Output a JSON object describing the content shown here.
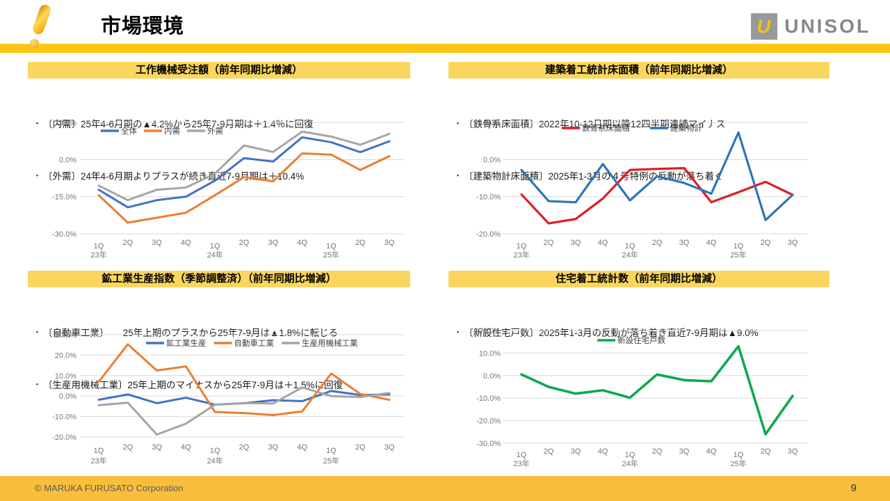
{
  "header": {
    "title": "市場環境"
  },
  "logo": {
    "letter": "U",
    "text": "UNISOL"
  },
  "footer": {
    "copyright": "© MARUKA FURUSATO Corporation",
    "page": "9"
  },
  "colors": {
    "header_strip": "#FFC613",
    "panel_title_bg": "#FBD65F",
    "footer_bar": "#F9BE3B",
    "series_blue": "#4472C4",
    "series_orange": "#ED7D31",
    "series_gray": "#A5A5A5",
    "series_red": "#E11B22",
    "series_darkblue": "#2E75B6",
    "series_green": "#0DA84F"
  },
  "panels": [
    {
      "title": "工作機械受注額（前年同期比増減）",
      "bullets": [
        "〔内需〕25年4-6月期の▲4.2%から25年7-9月期は＋1.4％に回復",
        "〔外需〕24年4-6月期よりプラスが続き直近7-9月期は＋10.4%"
      ]
    },
    {
      "title": "建築着工統計床面積（前年同期比増減）",
      "bullets": [
        "〔鉄骨系床面積〕2022年10-12月期以降12四半期連続マイナス",
        "〔建築物計床面積〕2025年1-3月の４号特例の反動が落ち着く"
      ]
    },
    {
      "title": "鉱工業生産指数（季節調整済）（前年同期比増減）",
      "bullets": [
        "〔自動車工業〕　　25年上期のプラスから25年7-9月は▲1.8%に転じる",
        "〔生産用機械工業〕25年上期のマイナスから25年7-9月は＋1.5%に回復"
      ]
    },
    {
      "title": "住宅着工統計数（前年同期比増減）",
      "bullets": [
        "〔新設住宅戸数〕2025年1-3月の反動が落ち着き直近7-9月期は▲9.0%"
      ]
    }
  ],
  "chart_data": [
    {
      "type": "line",
      "title": "工作機械受注額（前年同期比増減）",
      "categories": [
        "1Q",
        "2Q",
        "3Q",
        "4Q",
        "1Q",
        "2Q",
        "3Q",
        "4Q",
        "1Q",
        "2Q",
        "3Q"
      ],
      "year_labels": [
        {
          "index": 0,
          "label": "23年"
        },
        {
          "index": 4,
          "label": "24年"
        },
        {
          "index": 8,
          "label": "25年"
        }
      ],
      "ylim": [
        -30,
        15
      ],
      "grid": true,
      "legend_position": "top",
      "yticks": [
        {
          "value": 15,
          "label": "15.0%"
        },
        {
          "value": 0,
          "label": "0.0%"
        },
        {
          "value": -15,
          "label": "-15.0%"
        },
        {
          "value": -30,
          "label": "-30.0%"
        }
      ],
      "series": [
        {
          "name": "全体",
          "color": "#4472C4",
          "values": [
            -12.2,
            -19.3,
            -16.4,
            -15,
            -8.5,
            0.6,
            -0.8,
            9,
            7,
            3,
            7.4
          ]
        },
        {
          "name": "内需",
          "color": "#ED7D31",
          "values": [
            -14.4,
            -25.5,
            -23.5,
            -21.5,
            -14.4,
            -7.1,
            -8.8,
            2.5,
            2,
            -4.2,
            1.4
          ]
        },
        {
          "name": "外需",
          "color": "#A5A5A5",
          "values": [
            -10.5,
            -16.4,
            -12.2,
            -11.3,
            -5.7,
            5.7,
            3.1,
            11.3,
            9.3,
            6,
            10.4
          ]
        }
      ]
    },
    {
      "type": "line",
      "title": "建築着工統計床面積（前年同期比増減）",
      "categories": [
        "1Q",
        "2Q",
        "3Q",
        "4Q",
        "1Q",
        "2Q",
        "3Q",
        "4Q",
        "1Q",
        "2Q",
        "3Q"
      ],
      "year_labels": [
        {
          "index": 0,
          "label": "23年"
        },
        {
          "index": 4,
          "label": "24年"
        },
        {
          "index": 8,
          "label": "25年"
        }
      ],
      "ylim": [
        -20,
        10
      ],
      "grid": true,
      "legend_position": "top",
      "yticks": [
        {
          "value": 10,
          "label": "10.0%"
        },
        {
          "value": 0,
          "label": "0.0%"
        },
        {
          "value": -10,
          "label": "-10.0%"
        },
        {
          "value": -20,
          "label": "-20.0%"
        }
      ],
      "series": [
        {
          "name": "鉄骨系床面積",
          "color": "#E11B22",
          "values": [
            -9.4,
            -17.2,
            -16,
            -10.5,
            -2.8,
            -2.5,
            -2.3,
            -11.5,
            -8.8,
            -6,
            -9.5
          ]
        },
        {
          "name": "建築物計",
          "color": "#2E75B6",
          "values": [
            -2.8,
            -11.2,
            -11.5,
            -1.2,
            -11,
            -4.5,
            -6.3,
            -9.2,
            7.3,
            -16.3,
            -9.5
          ]
        }
      ]
    },
    {
      "type": "line",
      "title": "鉱工業生産指数（季節調整済）（前年同期比増減）",
      "categories": [
        "1Q",
        "2Q",
        "3Q",
        "4Q",
        "1Q",
        "2Q",
        "3Q",
        "4Q",
        "1Q",
        "2Q",
        "3Q"
      ],
      "year_labels": [
        {
          "index": 0,
          "label": "23年"
        },
        {
          "index": 4,
          "label": "24年"
        },
        {
          "index": 8,
          "label": "25年"
        }
      ],
      "ylim": [
        -20,
        30
      ],
      "grid": true,
      "legend_position": "top",
      "yticks": [
        {
          "value": 30,
          "label": "30.0%"
        },
        {
          "value": 20,
          "label": "20.0%"
        },
        {
          "value": 10,
          "label": "10.0%"
        },
        {
          "value": 0,
          "label": "0.0%"
        },
        {
          "value": -10,
          "label": "-10.0%"
        },
        {
          "value": -20,
          "label": "-20.0%"
        }
      ],
      "series": [
        {
          "name": "鉱工業生産",
          "color": "#4472C4",
          "values": [
            -1.8,
            0.8,
            -3.5,
            -0.8,
            -4.2,
            -3.5,
            -2,
            -2.5,
            2.5,
            0.5,
            0.8
          ]
        },
        {
          "name": "自動車工業",
          "color": "#ED7D31",
          "values": [
            7,
            25.3,
            12.5,
            14.5,
            -7.8,
            -8.3,
            -9.3,
            -7.5,
            11,
            1,
            -1.8
          ]
        },
        {
          "name": "生産用機械工業",
          "color": "#A5A5A5",
          "values": [
            -4.5,
            -3.2,
            -18.8,
            -13.5,
            -4.2,
            -3.4,
            -3.6,
            4.2,
            0,
            -0.5,
            1.5
          ]
        }
      ]
    },
    {
      "type": "line",
      "title": "住宅着工統計数（前年同期比増減）",
      "categories": [
        "1Q",
        "2Q",
        "3Q",
        "4Q",
        "1Q",
        "2Q",
        "3Q",
        "4Q",
        "1Q",
        "2Q",
        "3Q"
      ],
      "year_labels": [
        {
          "index": 0,
          "label": "23年"
        },
        {
          "index": 4,
          "label": "24年"
        },
        {
          "index": 8,
          "label": "25年"
        }
      ],
      "ylim": [
        -30,
        20
      ],
      "grid": true,
      "legend_position": "top",
      "yticks": [
        {
          "value": 20,
          "label": "20.0%"
        },
        {
          "value": 10,
          "label": "10.0%"
        },
        {
          "value": 0,
          "label": "0.0%"
        },
        {
          "value": -10,
          "label": "-10.0%"
        },
        {
          "value": -20,
          "label": "-20.0%"
        },
        {
          "value": -30,
          "label": "-30.0%"
        }
      ],
      "series": [
        {
          "name": "新設住宅戸数",
          "color": "#0DA84F",
          "values": [
            0.5,
            -5,
            -8,
            -6.5,
            -9.8,
            0.5,
            -2,
            -2.5,
            13,
            -26,
            -9
          ]
        }
      ]
    }
  ]
}
